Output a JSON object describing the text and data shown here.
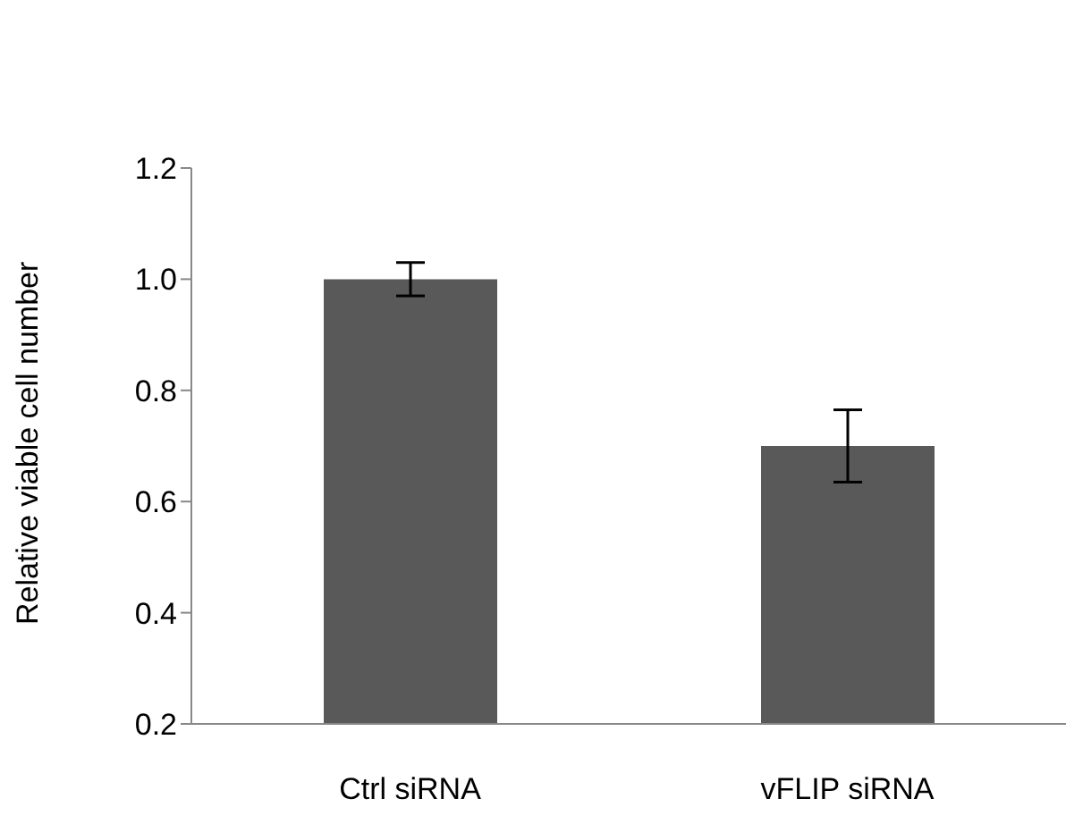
{
  "chart_data": {
    "type": "bar",
    "ylabel": "Relative viable cell number",
    "categories": [
      "Ctrl siRNA",
      "vFLIP siRNA"
    ],
    "values": [
      1.0,
      0.7
    ],
    "errors": [
      0.03,
      0.065
    ],
    "color": "#595959",
    "ylim": [
      0.2,
      1.2
    ],
    "yticks": [
      {
        "value": 0.2,
        "label": "0.2"
      },
      {
        "value": 0.4,
        "label": "0.4"
      },
      {
        "value": 0.6,
        "label": "0.6"
      },
      {
        "value": 0.8,
        "label": "0.8"
      },
      {
        "value": 1.0,
        "label": "1.0"
      },
      {
        "value": 1.2,
        "label": "1.2"
      }
    ],
    "grid": false,
    "legend": false
  }
}
